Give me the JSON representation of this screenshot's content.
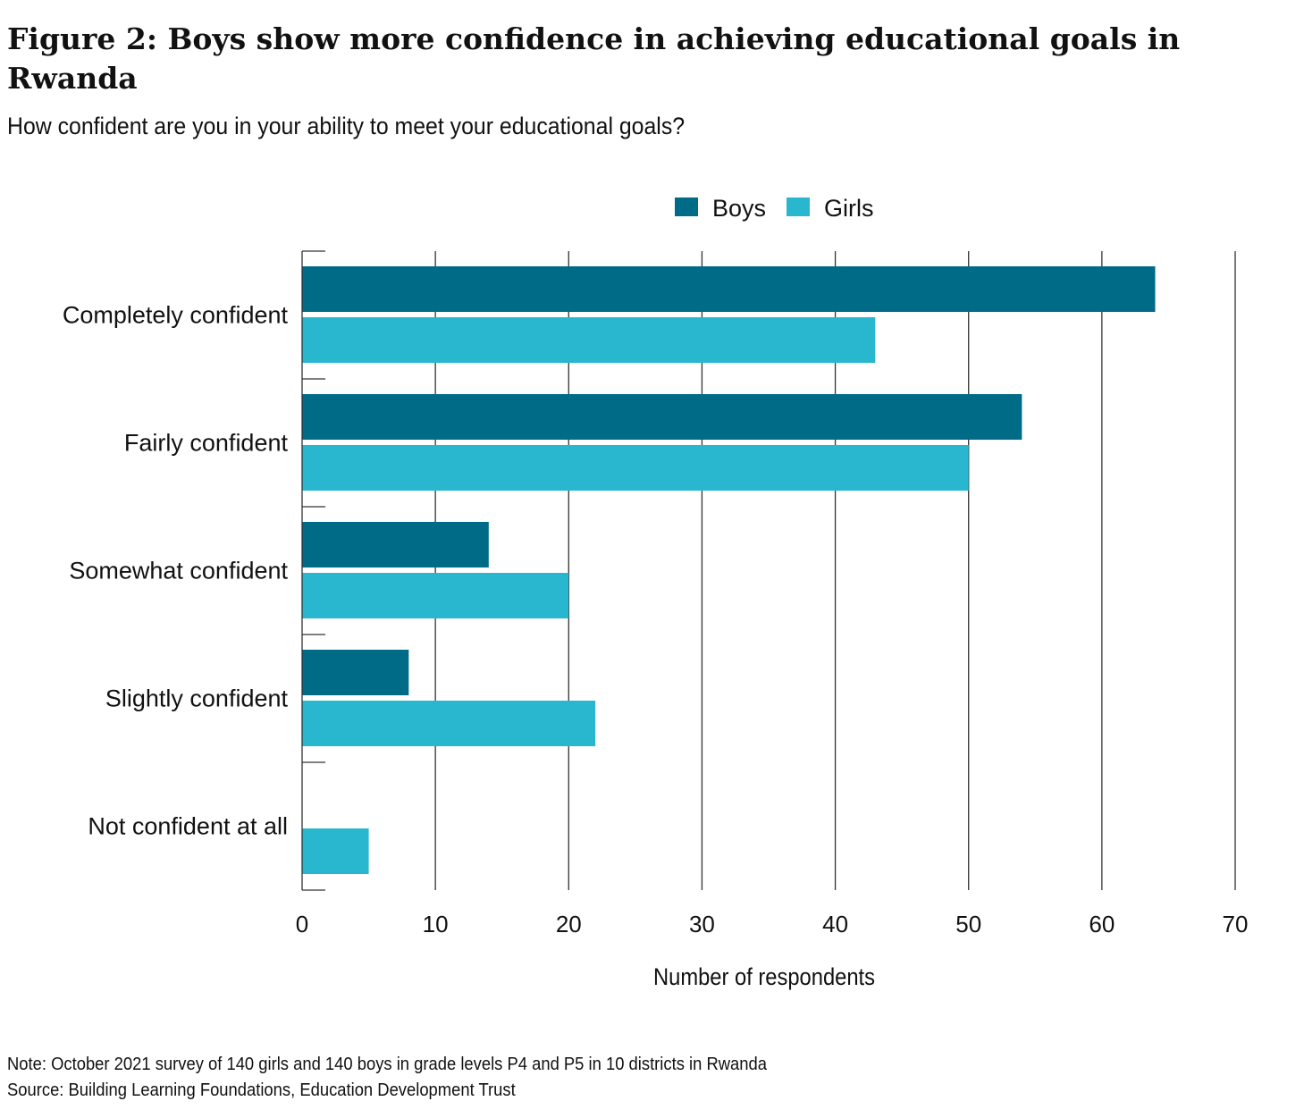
{
  "title": "Figure 2: Boys show more confidence in achieving educational goals in Rwanda",
  "subtitle": "How confident are you in your ability to meet your educational goals?",
  "note": "Note: October 2021 survey of 140 girls and 140 boys in grade levels P4 and P5 in 10 districts in Rwanda",
  "source": "Source: Building Learning Foundations, Education Development Trust",
  "chart_data": {
    "type": "bar",
    "orientation": "horizontal",
    "categories": [
      "Completely confident",
      "Fairly confident",
      "Somewhat confident",
      "Slightly confident",
      "Not confident at all"
    ],
    "series": [
      {
        "name": "Boys",
        "color": "#006b87",
        "values": [
          64,
          54,
          14,
          8,
          0
        ]
      },
      {
        "name": "Girls",
        "color": "#29b7cf",
        "values": [
          43,
          50,
          20,
          22,
          5
        ]
      }
    ],
    "xlabel": "Number of respondents",
    "ylabel": "",
    "xlim": [
      0,
      70
    ],
    "xticks": [
      0,
      10,
      20,
      30,
      40,
      50,
      60,
      70
    ],
    "grid": "vertical",
    "legend_position": "top-center"
  }
}
